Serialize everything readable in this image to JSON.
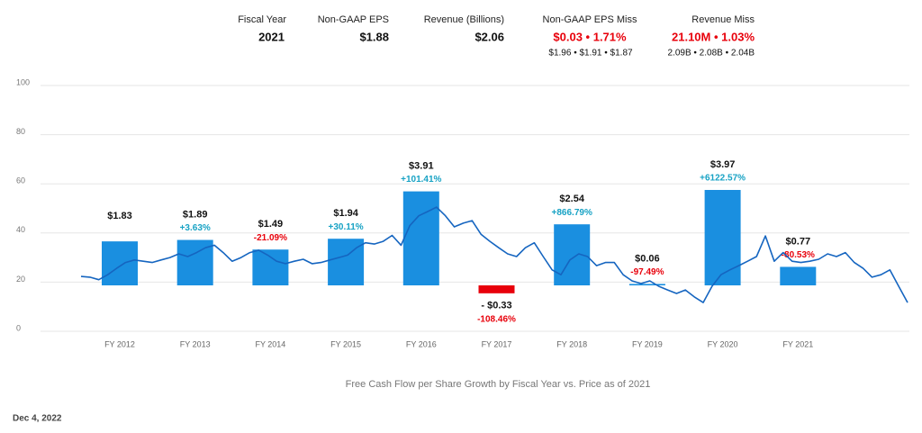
{
  "header": {
    "columns": [
      {
        "label": "Fiscal Year",
        "value": "2021"
      },
      {
        "label": "Non-GAAP EPS",
        "value": "$1.88"
      },
      {
        "label": "Revenue (Billions)",
        "value": "$2.06"
      },
      {
        "label": "Non-GAAP EPS Miss",
        "value": "$0.03 • 1.71%",
        "detail": "$1.96 • $1.91 • $1.87"
      },
      {
        "label": "Revenue Miss",
        "value": "21.10M • 1.03%",
        "detail": "2.09B • 2.08B • 2.04B"
      }
    ]
  },
  "chart_data": {
    "type": "combo",
    "title": "Free Cash Flow per Share Growth by Fiscal Year vs. Price as of 2021",
    "categories": [
      "FY 2012",
      "FY 2013",
      "FY 2014",
      "FY 2015",
      "FY 2016",
      "FY 2017",
      "FY 2018",
      "FY 2019",
      "FY 2020",
      "FY 2021"
    ],
    "ylim": [
      0,
      100
    ],
    "yticks": [
      0,
      20,
      40,
      60,
      80,
      100
    ],
    "grid": true,
    "fcf": {
      "values": [
        1.83,
        1.89,
        1.49,
        1.94,
        3.91,
        -0.33,
        2.54,
        0.06,
        3.97,
        0.77
      ],
      "value_labels": [
        "$1.83",
        "$1.89",
        "$1.49",
        "$1.94",
        "$3.91",
        "- $0.33",
        "$2.54",
        "$0.06",
        "$3.97",
        "$0.77"
      ],
      "color": "#1a8fe0",
      "negative_color": "#e8000b"
    },
    "growth": {
      "values": [
        null,
        3.63,
        -21.09,
        30.11,
        101.41,
        -108.46,
        866.79,
        -97.49,
        6122.57,
        -80.53
      ],
      "value_labels": [
        null,
        "+3.63%",
        "-21.09%",
        "+30.11%",
        "+101.41%",
        "-108.46%",
        "+866.79%",
        "-97.49%",
        "+6122.57%",
        "-80.53%"
      ],
      "color": "#17a2c4",
      "negative_color": "#e8000b"
    },
    "price": {
      "color": "#1565c0",
      "values": [
        22.3,
        22,
        21,
        23,
        25.6,
        28,
        29,
        28.5,
        28,
        29,
        30,
        31.5,
        30.4,
        32,
        34,
        35,
        32,
        28.5,
        30,
        32,
        33,
        31,
        28.5,
        27.5,
        28.5,
        29.3,
        27.5,
        28,
        29,
        30,
        31,
        34,
        36,
        35.5,
        36.6,
        39,
        35,
        43,
        47,
        48.7,
        50.5,
        47,
        42.5,
        44,
        45,
        39.5,
        36.6,
        34,
        31.5,
        30.4,
        34,
        36,
        30.4,
        25,
        23,
        29,
        31.5,
        30.4,
        26.7,
        28,
        28,
        23,
        20.5,
        19.4,
        20.5,
        18.3,
        16.8,
        15.4,
        16.8,
        14,
        11.7,
        18.3,
        23,
        25,
        26.7,
        28.5,
        30.4,
        38.8,
        28.5,
        32,
        28.5,
        28,
        28.5,
        29.3,
        31.5,
        30.4,
        32,
        28,
        25.6,
        22,
        23,
        25,
        18.3,
        11.7
      ]
    }
  },
  "footer": {
    "date": "Dec 4, 2022"
  }
}
